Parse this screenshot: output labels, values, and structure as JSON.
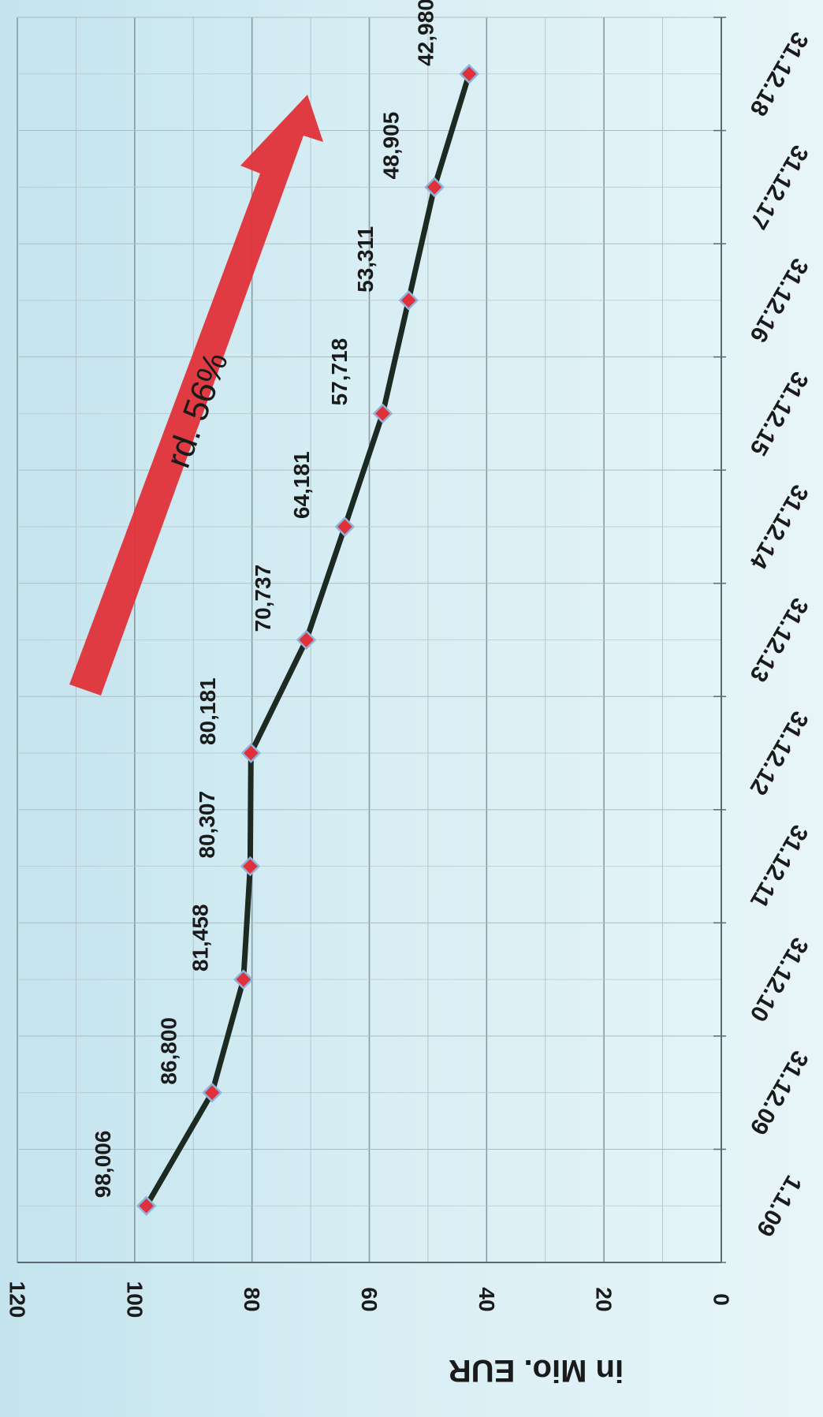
{
  "chart_data": {
    "type": "line",
    "orientation": "rotated 90° (image is turned sideways)",
    "categories": [
      "1.1.09",
      "31.12.09",
      "31.12.10",
      "31.12.11",
      "31.12.12",
      "31.12.13",
      "31.12.14",
      "31.12.15",
      "31.12.16",
      "31.12.17",
      "31.12.18"
    ],
    "values": [
      98.006,
      86.8,
      81.458,
      80.307,
      80.181,
      70.737,
      64.181,
      57.718,
      53.311,
      48.905,
      42.98
    ],
    "data_labels": [
      "98,006",
      "86,800",
      "81,458",
      "80,307",
      "80,181",
      "70,737",
      "64,181",
      "57,718",
      "53,311",
      "48,905",
      "42,980"
    ],
    "ylabel": "in Mio. EUR",
    "ylim": [
      0,
      120
    ],
    "yticks": [
      "0",
      "20",
      "40",
      "60",
      "80",
      "100",
      "120"
    ],
    "grid": true,
    "annotation": "rd. 56%",
    "colors": {
      "line": "#1c2a22",
      "marker": "#e0303a",
      "marker_edge": "#8fb3d9",
      "arrow": "#e03238",
      "grid": "#8a9aa0"
    }
  }
}
